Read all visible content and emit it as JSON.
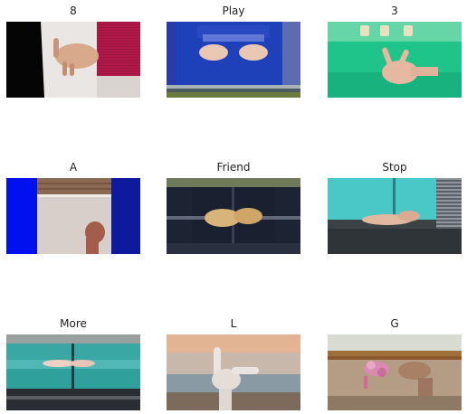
{
  "grid": {
    "panels": [
      {
        "title": "8"
      },
      {
        "title": "Play"
      },
      {
        "title": "3"
      },
      {
        "title": "A"
      },
      {
        "title": "Friend"
      },
      {
        "title": "Stop"
      },
      {
        "title": "More"
      },
      {
        "title": "L"
      },
      {
        "title": "G"
      }
    ]
  }
}
